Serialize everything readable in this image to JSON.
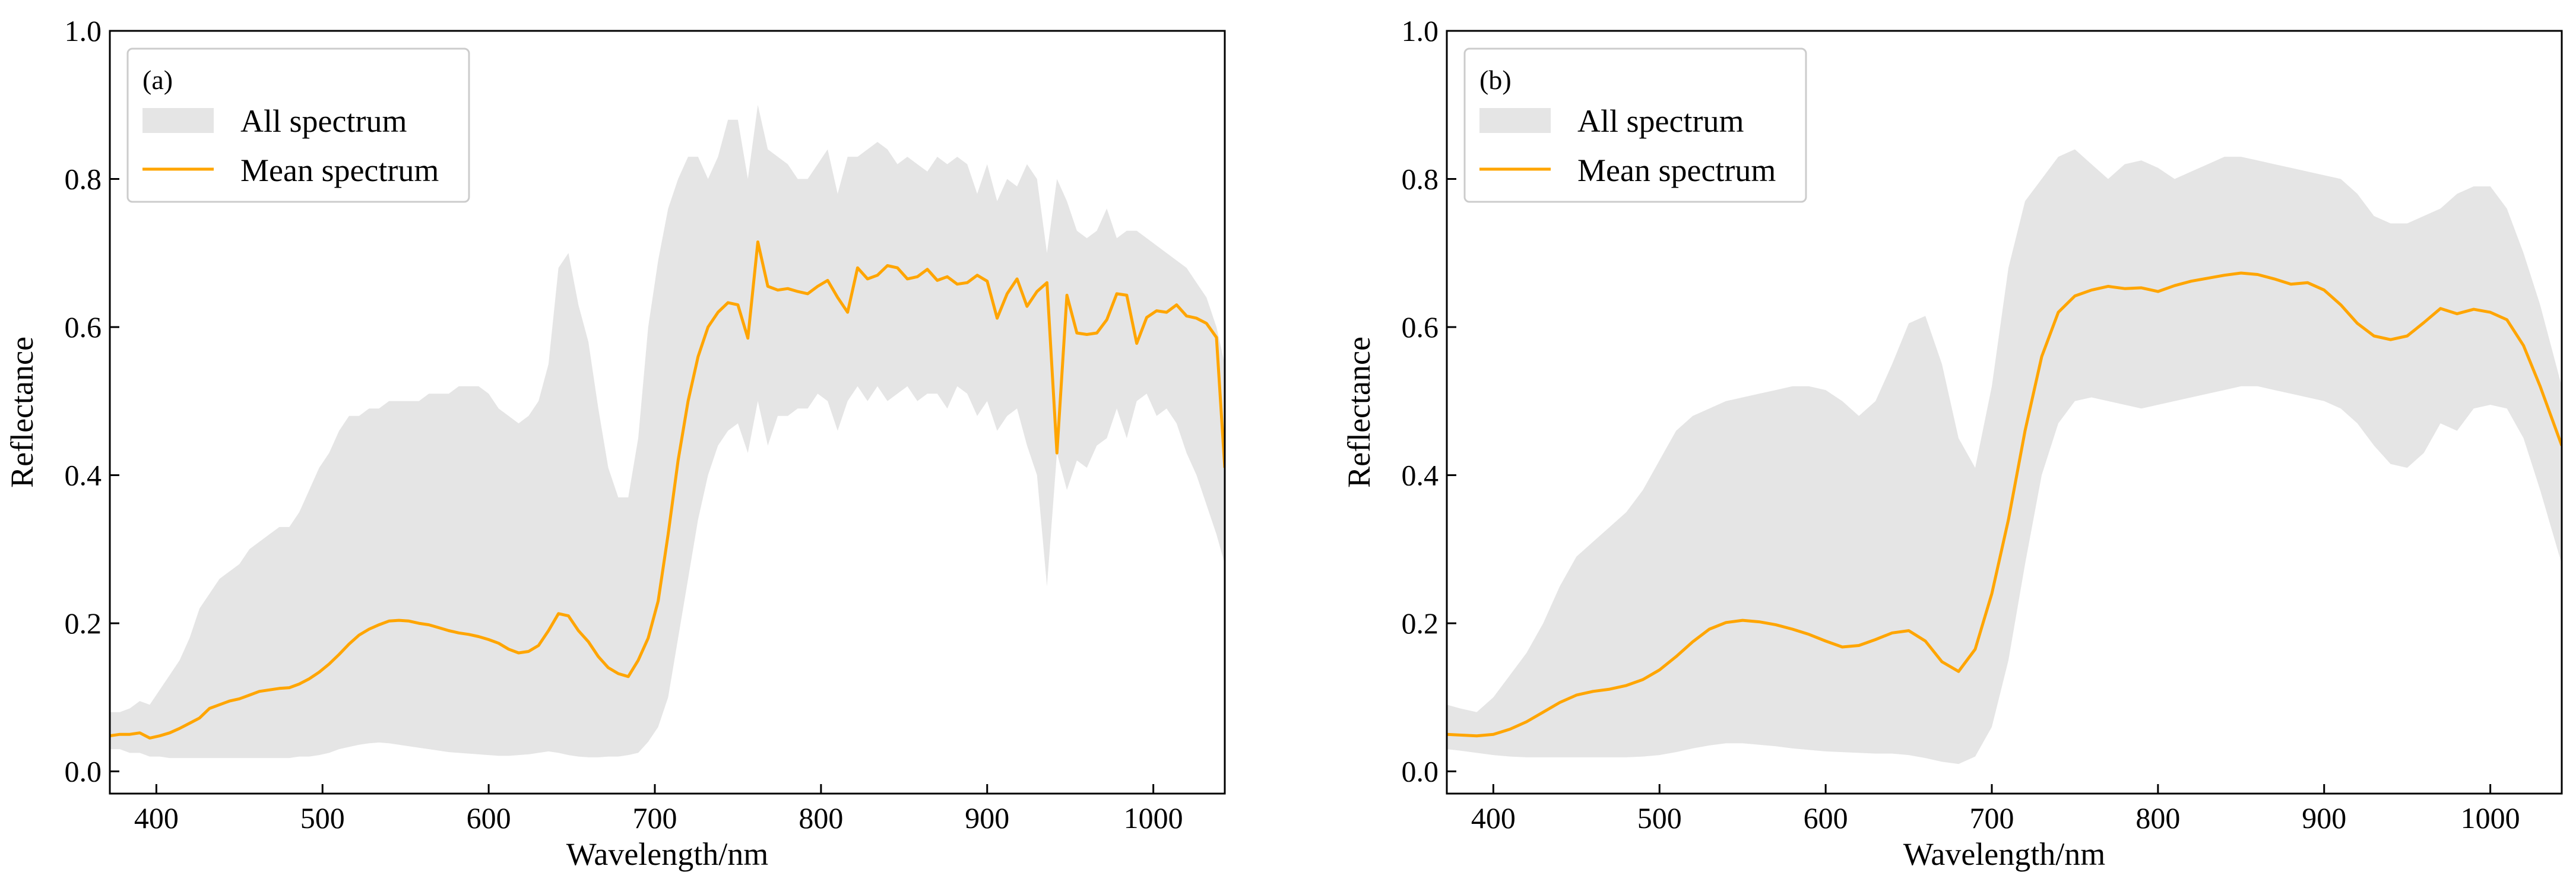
{
  "colors": {
    "band": "#e5e5e5",
    "mean": "#ffa500",
    "axis": "#000000",
    "legend_border": "#cccccc"
  },
  "chart_data": [
    {
      "type": "area",
      "panel_label": "(a)",
      "xlabel": "Wavelength/nm",
      "ylabel": "Reflectance",
      "xlim": [
        372,
        1043
      ],
      "ylim": [
        -0.03,
        1.0
      ],
      "xticks": [
        400,
        500,
        600,
        700,
        800,
        900,
        1000
      ],
      "yticks": [
        0.0,
        0.2,
        0.4,
        0.6,
        0.8,
        1.0
      ],
      "xtick_labels": [
        "400",
        "500",
        "600",
        "700",
        "800",
        "900",
        "1000"
      ],
      "ytick_labels": [
        "0.0",
        "0.2",
        "0.4",
        "0.6",
        "0.8",
        "1.0"
      ],
      "grid": false,
      "legend_position": "top-left",
      "legend": [
        {
          "label": "All spectrum",
          "kind": "band"
        },
        {
          "label": "Mean spectrum",
          "kind": "line"
        }
      ],
      "series": [
        {
          "name": "All spectrum",
          "kind": "band",
          "x": [
            372,
            378,
            384,
            390,
            396,
            402,
            408,
            414,
            420,
            426,
            432,
            438,
            444,
            450,
            456,
            462,
            468,
            474,
            480,
            486,
            492,
            498,
            504,
            510,
            516,
            522,
            528,
            534,
            540,
            546,
            552,
            558,
            564,
            570,
            576,
            582,
            588,
            594,
            600,
            606,
            612,
            618,
            624,
            630,
            636,
            642,
            648,
            654,
            660,
            666,
            672,
            678,
            684,
            690,
            696,
            702,
            708,
            714,
            720,
            726,
            732,
            738,
            744,
            750,
            756,
            762,
            768,
            774,
            780,
            786,
            792,
            798,
            804,
            810,
            816,
            822,
            828,
            834,
            840,
            846,
            852,
            858,
            864,
            870,
            876,
            882,
            888,
            894,
            900,
            906,
            912,
            918,
            924,
            930,
            936,
            942,
            948,
            954,
            960,
            966,
            972,
            978,
            984,
            990,
            996,
            1002,
            1008,
            1014,
            1020,
            1026,
            1032,
            1038,
            1043
          ],
          "lower": [
            0.03,
            0.03,
            0.025,
            0.025,
            0.02,
            0.02,
            0.018,
            0.018,
            0.018,
            0.018,
            0.018,
            0.018,
            0.018,
            0.018,
            0.018,
            0.018,
            0.018,
            0.018,
            0.018,
            0.02,
            0.02,
            0.022,
            0.025,
            0.03,
            0.033,
            0.036,
            0.038,
            0.039,
            0.038,
            0.036,
            0.034,
            0.032,
            0.03,
            0.028,
            0.026,
            0.025,
            0.024,
            0.023,
            0.022,
            0.021,
            0.021,
            0.022,
            0.023,
            0.025,
            0.027,
            0.025,
            0.022,
            0.02,
            0.019,
            0.019,
            0.02,
            0.02,
            0.022,
            0.025,
            0.04,
            0.06,
            0.1,
            0.18,
            0.26,
            0.34,
            0.4,
            0.44,
            0.46,
            0.47,
            0.43,
            0.5,
            0.44,
            0.48,
            0.48,
            0.49,
            0.49,
            0.51,
            0.5,
            0.46,
            0.5,
            0.52,
            0.5,
            0.52,
            0.5,
            0.51,
            0.52,
            0.5,
            0.51,
            0.51,
            0.49,
            0.52,
            0.51,
            0.48,
            0.5,
            0.46,
            0.48,
            0.49,
            0.44,
            0.4,
            0.25,
            0.43,
            0.38,
            0.42,
            0.41,
            0.44,
            0.45,
            0.49,
            0.45,
            0.5,
            0.51,
            0.48,
            0.49,
            0.47,
            0.43,
            0.4,
            0.36,
            0.32,
            0.28
          ],
          "upper": [
            0.08,
            0.08,
            0.085,
            0.095,
            0.09,
            0.11,
            0.13,
            0.15,
            0.18,
            0.22,
            0.24,
            0.26,
            0.27,
            0.28,
            0.3,
            0.31,
            0.32,
            0.33,
            0.33,
            0.35,
            0.38,
            0.41,
            0.43,
            0.46,
            0.48,
            0.48,
            0.49,
            0.49,
            0.5,
            0.5,
            0.5,
            0.5,
            0.51,
            0.51,
            0.51,
            0.52,
            0.52,
            0.52,
            0.51,
            0.49,
            0.48,
            0.47,
            0.48,
            0.5,
            0.55,
            0.68,
            0.7,
            0.63,
            0.58,
            0.49,
            0.41,
            0.37,
            0.37,
            0.45,
            0.6,
            0.69,
            0.76,
            0.8,
            0.83,
            0.83,
            0.8,
            0.83,
            0.88,
            0.88,
            0.8,
            0.9,
            0.84,
            0.83,
            0.82,
            0.8,
            0.8,
            0.82,
            0.84,
            0.78,
            0.83,
            0.83,
            0.84,
            0.85,
            0.84,
            0.82,
            0.83,
            0.82,
            0.81,
            0.83,
            0.82,
            0.83,
            0.82,
            0.78,
            0.82,
            0.77,
            0.8,
            0.79,
            0.82,
            0.8,
            0.7,
            0.8,
            0.77,
            0.73,
            0.72,
            0.73,
            0.76,
            0.72,
            0.73,
            0.73,
            0.72,
            0.71,
            0.7,
            0.69,
            0.68,
            0.66,
            0.64,
            0.6,
            0.55
          ]
        },
        {
          "name": "Mean spectrum",
          "kind": "line",
          "x": [
            372,
            378,
            384,
            390,
            396,
            402,
            408,
            414,
            420,
            426,
            432,
            438,
            444,
            450,
            456,
            462,
            468,
            474,
            480,
            486,
            492,
            498,
            504,
            510,
            516,
            522,
            528,
            534,
            540,
            546,
            552,
            558,
            564,
            570,
            576,
            582,
            588,
            594,
            600,
            606,
            612,
            618,
            624,
            630,
            636,
            642,
            648,
            654,
            660,
            666,
            672,
            678,
            684,
            690,
            696,
            702,
            708,
            714,
            720,
            726,
            732,
            738,
            744,
            750,
            756,
            762,
            768,
            774,
            780,
            786,
            792,
            798,
            804,
            810,
            816,
            822,
            828,
            834,
            840,
            846,
            852,
            858,
            864,
            870,
            876,
            882,
            888,
            894,
            900,
            906,
            912,
            918,
            924,
            930,
            936,
            942,
            948,
            954,
            960,
            966,
            972,
            978,
            984,
            990,
            996,
            1002,
            1008,
            1014,
            1020,
            1026,
            1032,
            1038,
            1043
          ],
          "y": [
            0.048,
            0.05,
            0.05,
            0.052,
            0.045,
            0.048,
            0.052,
            0.058,
            0.065,
            0.072,
            0.085,
            0.09,
            0.095,
            0.098,
            0.103,
            0.108,
            0.11,
            0.112,
            0.113,
            0.118,
            0.125,
            0.134,
            0.145,
            0.158,
            0.172,
            0.184,
            0.192,
            0.198,
            0.203,
            0.204,
            0.203,
            0.2,
            0.198,
            0.194,
            0.19,
            0.187,
            0.185,
            0.182,
            0.178,
            0.173,
            0.165,
            0.16,
            0.162,
            0.17,
            0.19,
            0.213,
            0.21,
            0.19,
            0.175,
            0.155,
            0.14,
            0.132,
            0.128,
            0.15,
            0.18,
            0.23,
            0.32,
            0.42,
            0.5,
            0.56,
            0.6,
            0.62,
            0.633,
            0.63,
            0.585,
            0.715,
            0.655,
            0.65,
            0.652,
            0.648,
            0.645,
            0.655,
            0.663,
            0.64,
            0.62,
            0.68,
            0.665,
            0.67,
            0.683,
            0.68,
            0.665,
            0.668,
            0.678,
            0.663,
            0.668,
            0.658,
            0.66,
            0.67,
            0.662,
            0.612,
            0.645,
            0.665,
            0.628,
            0.648,
            0.66,
            0.43,
            0.643,
            0.592,
            0.59,
            0.592,
            0.61,
            0.645,
            0.643,
            0.578,
            0.613,
            0.622,
            0.62,
            0.63,
            0.615,
            0.612,
            0.605,
            0.586,
            0.41
          ]
        }
      ]
    },
    {
      "type": "area",
      "panel_label": "(b)",
      "xlabel": "Wavelength/nm",
      "ylabel": "Reflectance",
      "xlim": [
        372,
        1043
      ],
      "ylim": [
        -0.03,
        1.0
      ],
      "xticks": [
        400,
        500,
        600,
        700,
        800,
        900,
        1000
      ],
      "yticks": [
        0.0,
        0.2,
        0.4,
        0.6,
        0.8,
        1.0
      ],
      "xtick_labels": [
        "400",
        "500",
        "600",
        "700",
        "800",
        "900",
        "1000"
      ],
      "ytick_labels": [
        "0.0",
        "0.2",
        "0.4",
        "0.6",
        "0.8",
        "1.0"
      ],
      "grid": false,
      "legend_position": "top-left",
      "legend": [
        {
          "label": "All spectrum",
          "kind": "band"
        },
        {
          "label": "Mean spectrum",
          "kind": "line"
        }
      ],
      "series": [
        {
          "name": "All spectrum",
          "kind": "band",
          "x": [
            372,
            380,
            390,
            400,
            410,
            420,
            430,
            440,
            450,
            460,
            470,
            480,
            490,
            500,
            510,
            520,
            530,
            540,
            550,
            560,
            570,
            580,
            590,
            600,
            610,
            620,
            630,
            640,
            650,
            660,
            670,
            680,
            690,
            700,
            710,
            720,
            730,
            740,
            750,
            760,
            770,
            780,
            790,
            800,
            810,
            820,
            830,
            840,
            850,
            860,
            870,
            880,
            890,
            900,
            910,
            920,
            930,
            940,
            950,
            960,
            970,
            980,
            990,
            1000,
            1010,
            1020,
            1030,
            1043
          ],
          "lower": [
            0.03,
            0.028,
            0.025,
            0.022,
            0.02,
            0.019,
            0.019,
            0.019,
            0.019,
            0.019,
            0.019,
            0.019,
            0.02,
            0.022,
            0.026,
            0.031,
            0.035,
            0.038,
            0.038,
            0.036,
            0.034,
            0.031,
            0.029,
            0.027,
            0.026,
            0.025,
            0.024,
            0.024,
            0.022,
            0.018,
            0.013,
            0.01,
            0.02,
            0.06,
            0.15,
            0.28,
            0.4,
            0.47,
            0.5,
            0.505,
            0.5,
            0.495,
            0.49,
            0.495,
            0.5,
            0.505,
            0.51,
            0.515,
            0.52,
            0.52,
            0.515,
            0.51,
            0.505,
            0.5,
            0.49,
            0.47,
            0.44,
            0.415,
            0.41,
            0.43,
            0.47,
            0.46,
            0.49,
            0.495,
            0.49,
            0.45,
            0.38,
            0.28
          ],
          "upper": [
            0.09,
            0.085,
            0.08,
            0.1,
            0.13,
            0.16,
            0.2,
            0.25,
            0.29,
            0.31,
            0.33,
            0.35,
            0.38,
            0.42,
            0.46,
            0.48,
            0.49,
            0.5,
            0.505,
            0.51,
            0.515,
            0.52,
            0.52,
            0.515,
            0.5,
            0.48,
            0.5,
            0.55,
            0.605,
            0.615,
            0.55,
            0.45,
            0.41,
            0.52,
            0.68,
            0.77,
            0.8,
            0.83,
            0.84,
            0.82,
            0.8,
            0.82,
            0.825,
            0.815,
            0.8,
            0.81,
            0.82,
            0.83,
            0.83,
            0.825,
            0.82,
            0.815,
            0.81,
            0.805,
            0.8,
            0.78,
            0.75,
            0.74,
            0.74,
            0.75,
            0.76,
            0.78,
            0.79,
            0.79,
            0.76,
            0.7,
            0.63,
            0.52
          ]
        },
        {
          "name": "Mean spectrum",
          "kind": "line",
          "x": [
            372,
            380,
            390,
            400,
            410,
            420,
            430,
            440,
            450,
            460,
            470,
            480,
            490,
            500,
            510,
            520,
            530,
            540,
            550,
            560,
            570,
            580,
            590,
            600,
            610,
            620,
            630,
            640,
            650,
            660,
            670,
            680,
            690,
            700,
            710,
            720,
            730,
            740,
            750,
            760,
            770,
            780,
            790,
            800,
            810,
            820,
            830,
            840,
            850,
            860,
            870,
            880,
            890,
            900,
            910,
            920,
            930,
            940,
            950,
            960,
            970,
            980,
            990,
            1000,
            1010,
            1020,
            1030,
            1043
          ],
          "y": [
            0.05,
            0.049,
            0.048,
            0.05,
            0.057,
            0.067,
            0.08,
            0.093,
            0.103,
            0.108,
            0.111,
            0.116,
            0.124,
            0.137,
            0.155,
            0.175,
            0.192,
            0.201,
            0.204,
            0.202,
            0.198,
            0.192,
            0.185,
            0.176,
            0.168,
            0.17,
            0.178,
            0.187,
            0.19,
            0.176,
            0.148,
            0.135,
            0.165,
            0.24,
            0.34,
            0.46,
            0.56,
            0.62,
            0.642,
            0.65,
            0.655,
            0.652,
            0.653,
            0.648,
            0.656,
            0.662,
            0.666,
            0.67,
            0.673,
            0.671,
            0.665,
            0.658,
            0.66,
            0.65,
            0.63,
            0.605,
            0.588,
            0.583,
            0.588,
            0.606,
            0.625,
            0.618,
            0.624,
            0.62,
            0.61,
            0.575,
            0.52,
            0.44
          ]
        }
      ]
    }
  ]
}
